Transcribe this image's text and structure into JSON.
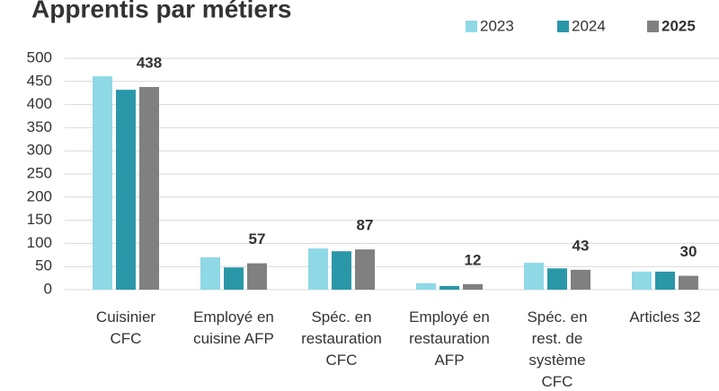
{
  "chart_data": {
    "type": "bar",
    "title": "Apprentis par métiers",
    "categories": [
      [
        "Cuisinier",
        "CFC"
      ],
      [
        "Employé en",
        "cuisine AFP"
      ],
      [
        "Spéc. en",
        "restauration",
        "CFC"
      ],
      [
        "Employé en",
        "restauration",
        "AFP"
      ],
      [
        "Spéc. en",
        "rest. de",
        "système",
        "CFC"
      ],
      [
        "Articles 32"
      ]
    ],
    "series": [
      {
        "name": "2023",
        "color": "#8fd8e6",
        "values": [
          461,
          70,
          89,
          14,
          58,
          39
        ]
      },
      {
        "name": "2024",
        "color": "#2a97a8",
        "values": [
          432,
          48,
          83,
          8,
          46,
          39
        ]
      },
      {
        "name": "2025",
        "color": "#808080",
        "values": [
          438,
          57,
          87,
          12,
          43,
          30
        ],
        "data_labels": true
      }
    ],
    "ylim": [
      0,
      500
    ],
    "yticks": [
      0,
      50,
      100,
      150,
      200,
      250,
      300,
      350,
      400,
      450,
      500
    ],
    "grid": true,
    "legend": "top-right"
  }
}
